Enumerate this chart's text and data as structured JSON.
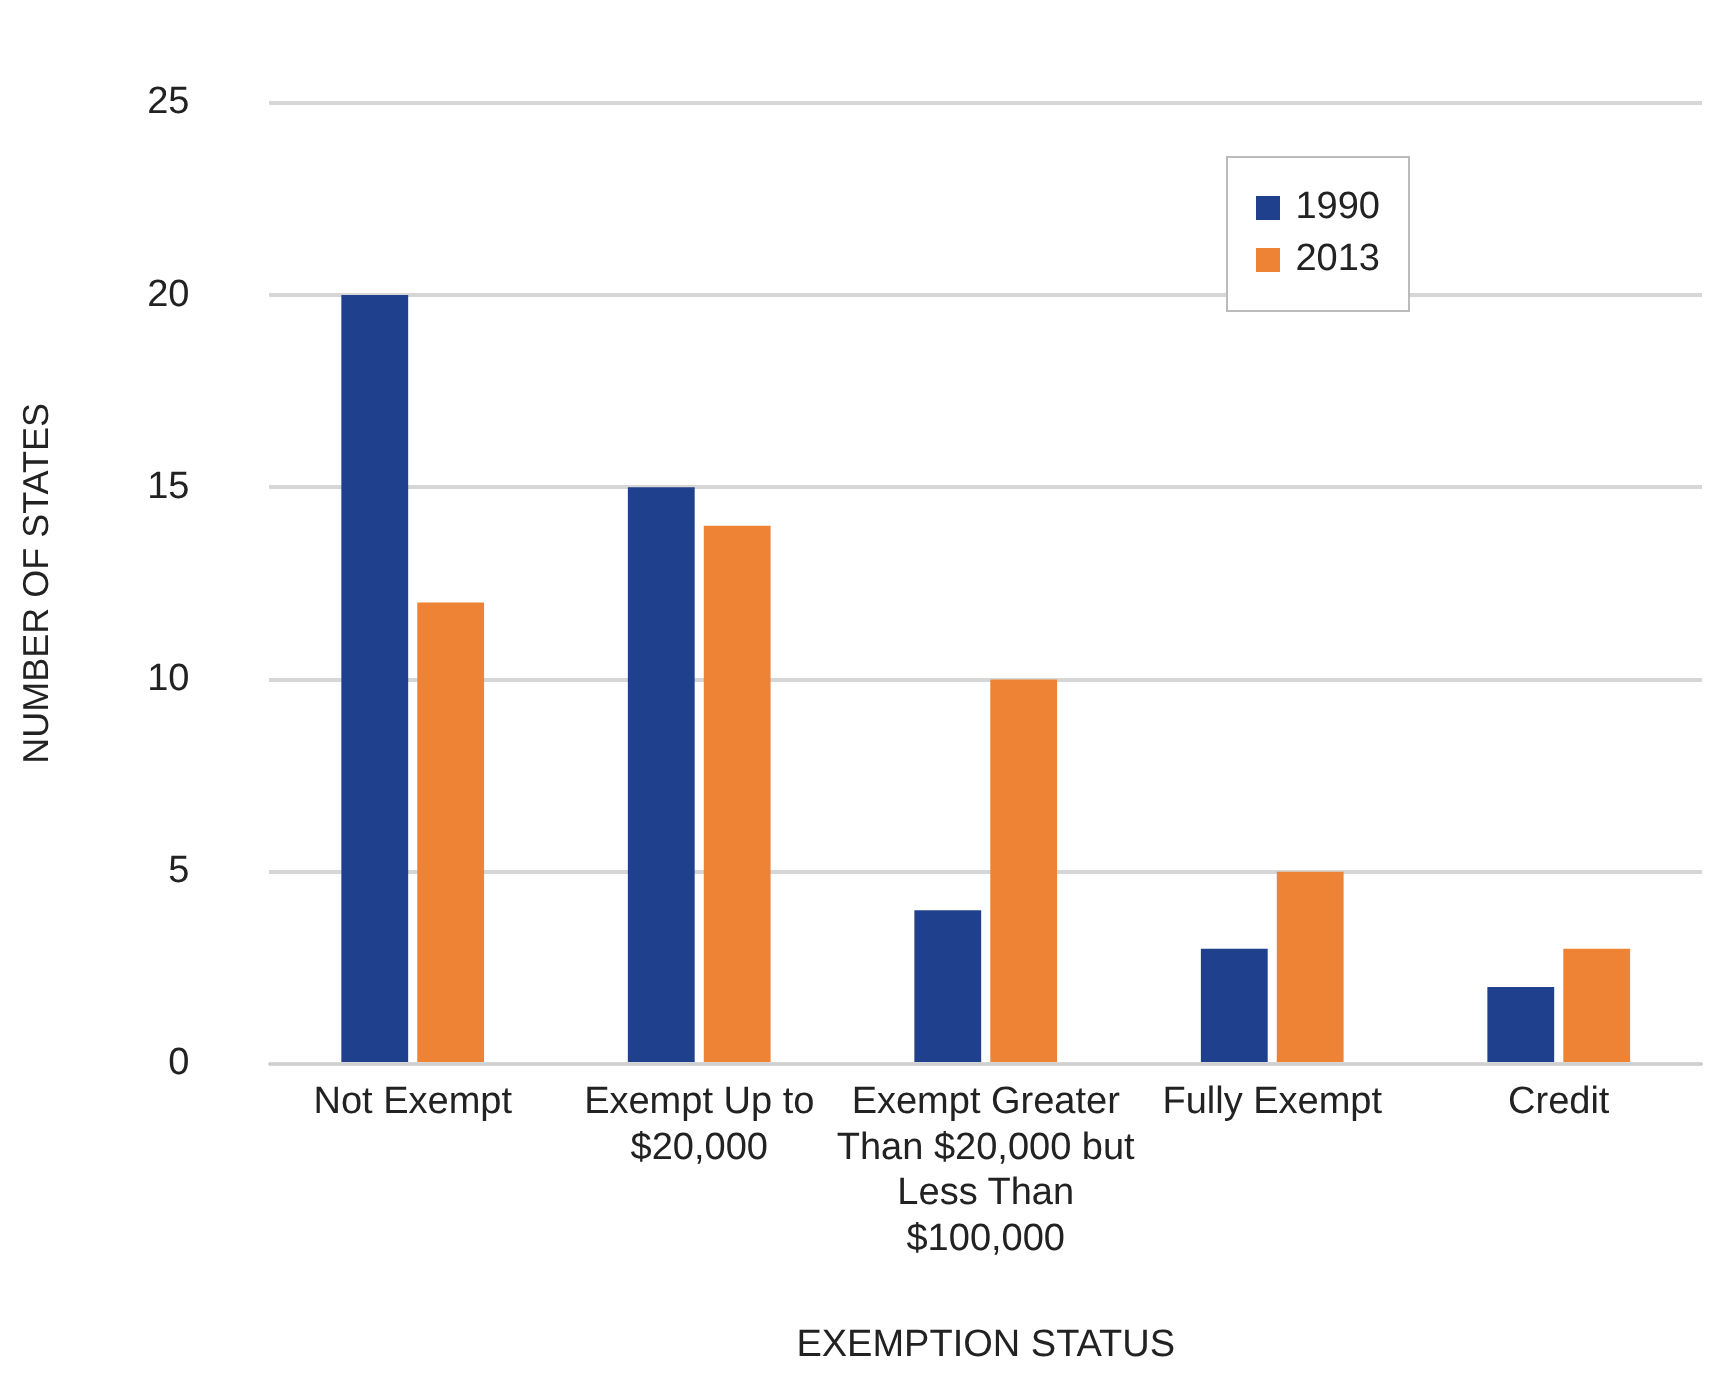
{
  "chart_data": {
    "type": "bar",
    "xlabel": "EXEMPTION STATUS",
    "ylabel": "NUMBER OF STATES",
    "categories": [
      "Not Exempt",
      "Exempt Up to $20,000",
      "Exempt Greater Than $20,000 but Less Than $100,000",
      "Fully Exempt",
      "Credit"
    ],
    "series": [
      {
        "name": "1990",
        "color": "#1f408c",
        "values": [
          20,
          15,
          4,
          3,
          2
        ]
      },
      {
        "name": "2013",
        "color": "#ee8235",
        "values": [
          12,
          14,
          10,
          5,
          3
        ]
      }
    ],
    "ylim": [
      0,
      25
    ],
    "yticks": [
      0,
      5,
      10,
      15,
      20,
      25
    ],
    "grid": "y",
    "legend": "top right"
  }
}
